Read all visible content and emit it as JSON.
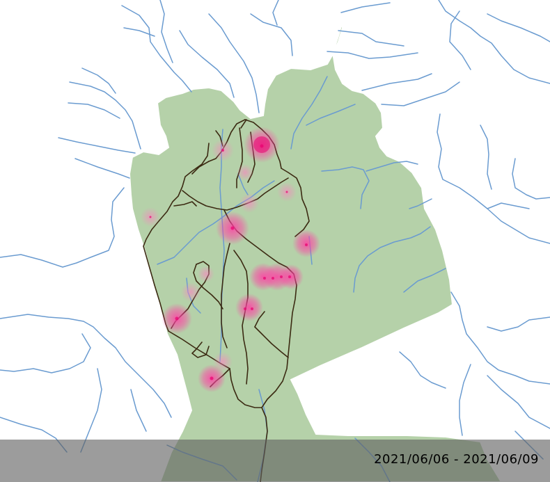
{
  "map": {
    "colors": {
      "background": "#ffffff",
      "park_fill": "#b5d1a9",
      "river": "#6a9bd0",
      "trail": "#3b2a12",
      "heat": "#ff3fa4",
      "heat_core": "#e8006e",
      "date_bar": "#5f5f5f"
    },
    "date_range": "2021/06/06 - 2021/06/09"
  }
}
